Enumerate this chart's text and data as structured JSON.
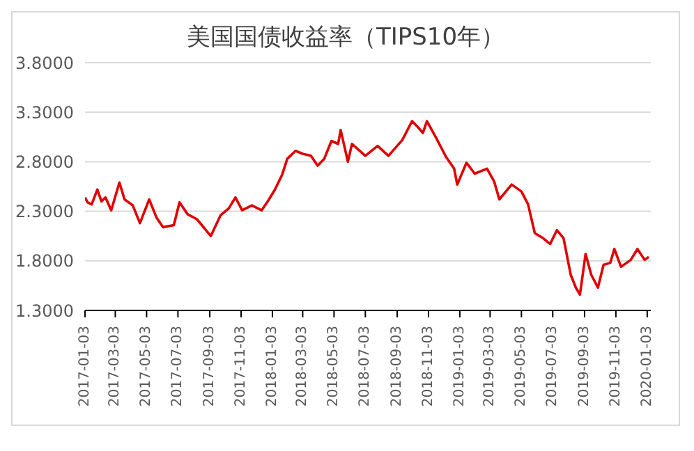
{
  "chart_data": {
    "type": "line",
    "title": "美国国债收益率（TIPS10年）",
    "x": [
      "2017-01-03",
      "2017-01-08",
      "2017-01-16",
      "2017-01-27",
      "2017-02-04",
      "2017-02-12",
      "2017-02-23",
      "2017-03-11",
      "2017-03-21",
      "2017-04-06",
      "2017-04-20",
      "2017-05-08",
      "2017-05-22",
      "2017-06-04",
      "2017-06-25",
      "2017-07-06",
      "2017-07-22",
      "2017-08-09",
      "2017-09-05",
      "2017-09-24",
      "2017-10-10",
      "2017-10-23",
      "2017-11-05",
      "2017-11-24",
      "2017-12-13",
      "2017-12-26",
      "2018-01-08",
      "2018-01-22",
      "2018-02-01",
      "2018-02-17",
      "2018-03-03",
      "2018-03-19",
      "2018-04-01",
      "2018-04-14",
      "2018-04-28",
      "2018-05-11",
      "2018-05-16",
      "2018-05-30",
      "2018-06-07",
      "2018-07-03",
      "2018-07-27",
      "2018-08-17",
      "2018-09-13",
      "2018-10-02",
      "2018-10-15",
      "2018-10-23",
      "2018-10-31",
      "2018-11-19",
      "2018-12-07",
      "2018-12-23",
      "2018-12-29",
      "2019-01-16",
      "2019-02-01",
      "2019-02-25",
      "2019-03-11",
      "2019-03-21",
      "2019-04-14",
      "2019-05-03",
      "2019-05-16",
      "2019-05-29",
      "2019-06-14",
      "2019-06-28",
      "2019-07-11",
      "2019-07-24",
      "2019-08-07",
      "2019-08-17",
      "2019-08-25",
      "2019-09-05",
      "2019-09-16",
      "2019-09-29",
      "2019-10-10",
      "2019-10-23",
      "2019-10-31",
      "2019-11-13",
      "2019-12-02",
      "2019-12-15",
      "2019-12-29",
      "2020-01-06"
    ],
    "series": [
      {
        "color": "#e00000",
        "values": [
          2.44,
          2.39,
          2.37,
          2.52,
          2.4,
          2.44,
          2.31,
          2.59,
          2.42,
          2.36,
          2.18,
          2.42,
          2.24,
          2.14,
          2.16,
          2.39,
          2.27,
          2.22,
          2.05,
          2.26,
          2.33,
          2.44,
          2.31,
          2.36,
          2.31,
          2.41,
          2.52,
          2.67,
          2.83,
          2.91,
          2.88,
          2.86,
          2.76,
          2.83,
          3.01,
          2.98,
          3.12,
          2.8,
          2.98,
          2.86,
          2.96,
          2.86,
          3.02,
          3.21,
          3.14,
          3.09,
          3.21,
          3.03,
          2.85,
          2.73,
          2.57,
          2.79,
          2.68,
          2.73,
          2.6,
          2.42,
          2.57,
          2.5,
          2.37,
          2.08,
          2.03,
          1.97,
          2.11,
          2.03,
          1.66,
          1.53,
          1.46,
          1.87,
          1.66,
          1.53,
          1.76,
          1.78,
          1.92,
          1.74,
          1.81,
          1.92,
          1.81,
          1.84
        ]
      }
    ],
    "xlim": [
      "2017-01-03",
      "2020-01-10"
    ],
    "xticks": [
      "2017-01-03",
      "2017-03-03",
      "2017-05-03",
      "2017-07-03",
      "2017-09-03",
      "2017-11-03",
      "2018-01-03",
      "2018-03-03",
      "2018-05-03",
      "2018-07-03",
      "2018-09-03",
      "2018-11-03",
      "2019-01-03",
      "2019-03-03",
      "2019-05-03",
      "2019-07-03",
      "2019-09-03",
      "2019-11-03",
      "2020-01-03"
    ],
    "ylim": [
      1.3,
      3.8
    ],
    "yticks": [
      {
        "value": 1.3,
        "label": "1.3000"
      },
      {
        "value": 1.8,
        "label": "1.8000"
      },
      {
        "value": 2.3,
        "label": "2.3000"
      },
      {
        "value": 2.8,
        "label": "2.8000"
      },
      {
        "value": 3.3,
        "label": "3.3000"
      },
      {
        "value": 3.8,
        "label": "3.8000"
      }
    ],
    "grid": "y",
    "marker": "none",
    "line_style": "solid",
    "legend": false
  }
}
